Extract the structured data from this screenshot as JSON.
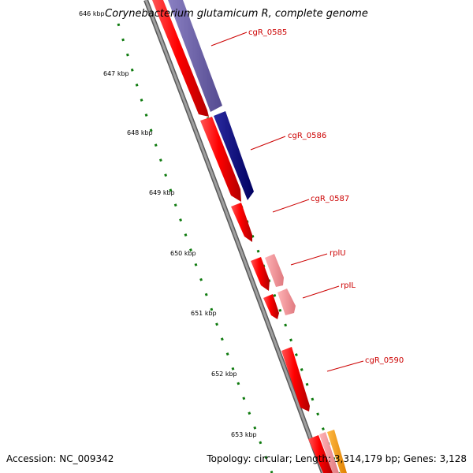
{
  "title": "Corynebacterium glutamicum R, complete genome",
  "footer": {
    "accession": "Accession: NC_009342",
    "stats": "Topology: circular; Length: 3,314,179 bp; Genes: 3,128"
  },
  "colors": {
    "backbone": "#8c8c8c",
    "tick": "#0e7a0e",
    "label_red": "#cc0000",
    "gene_red": "#ff0000",
    "gene_pink": "#f28d92",
    "gene_navy": "#000080",
    "gene_purple": "#6a5fa6",
    "gene_orange": "#ff9900"
  },
  "diagram": {
    "scale_labels": [
      "646 kbp",
      "647 kbp",
      "648 kbp",
      "649 kbp",
      "650 kbp",
      "651 kbp",
      "652 kbp",
      "653 kbp"
    ],
    "gene_labels": [
      "cgR_0585",
      "cgR_0586",
      "cgR_0587",
      "rplU",
      "rpIL",
      "cgR_0590"
    ]
  }
}
